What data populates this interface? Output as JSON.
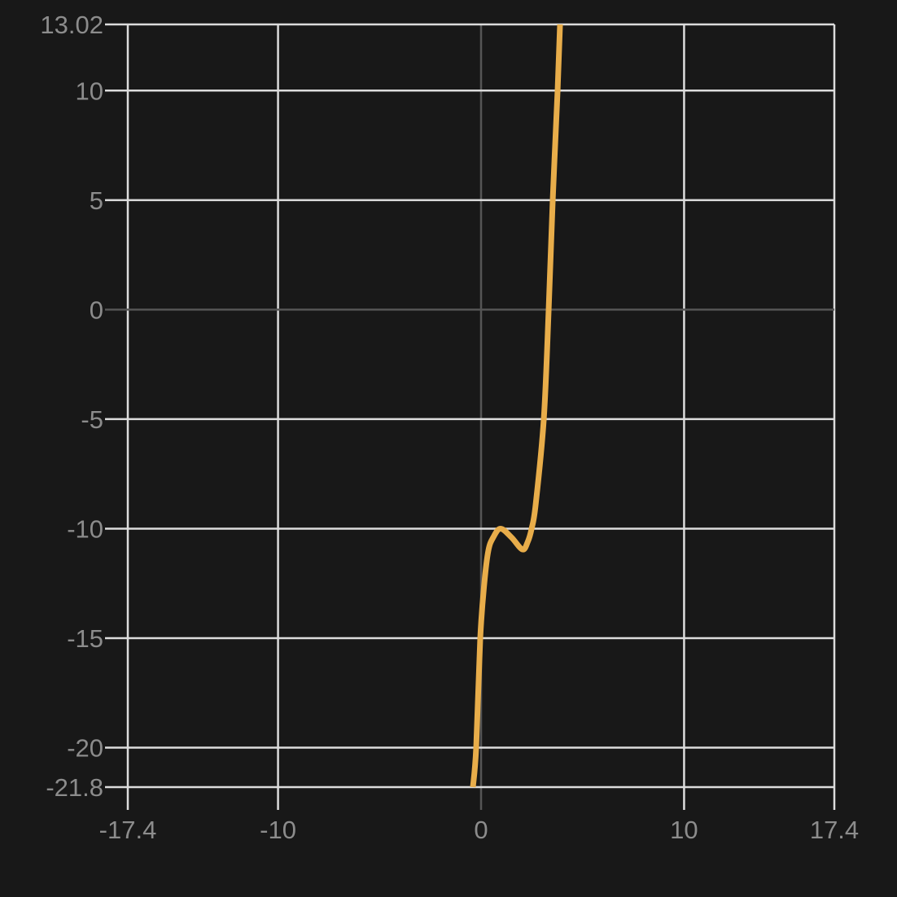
{
  "chart_data": {
    "type": "line",
    "title": "",
    "xlabel": "",
    "ylabel": "",
    "xlim": [
      -17.4,
      17.4
    ],
    "ylim": [
      -21.8,
      13.02
    ],
    "grid": true,
    "x_ticks": [
      "-17.4",
      "-10",
      "0",
      "10",
      "17.4"
    ],
    "y_ticks": [
      "13.02",
      "10",
      "5",
      "0",
      "-5",
      "-10",
      "-15",
      "-20",
      "-21.8"
    ],
    "colors": {
      "background": "#181818",
      "grid": "#dcdcdc",
      "zero_axis": "#555555",
      "line": "#e8ad4a",
      "tick_label": "#8c8c8c"
    },
    "series": [
      {
        "x": [
          -0.4,
          -0.24,
          -0.04,
          0.16,
          0.36,
          0.6,
          0.96,
          1.5,
          2.04,
          2.3,
          2.49,
          2.69,
          3.09,
          3.33,
          3.53,
          3.77,
          3.89
        ],
        "y": [
          -21.8,
          -20,
          -15,
          -12.5,
          -11,
          -10.4,
          -10.0,
          -10.4,
          -10.95,
          -10.6,
          -10,
          -8.9,
          -5,
          0,
          5,
          10,
          13.02
        ]
      }
    ]
  }
}
